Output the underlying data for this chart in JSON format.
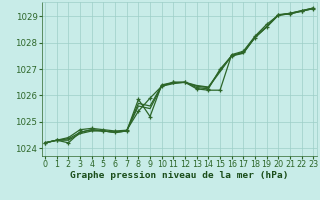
{
  "title": "Graphe pression niveau de la mer (hPa)",
  "x_values": [
    0,
    1,
    2,
    3,
    4,
    5,
    6,
    7,
    8,
    9,
    10,
    11,
    12,
    13,
    14,
    15,
    16,
    17,
    18,
    19,
    20,
    21,
    22,
    23
  ],
  "line_main": [
    1024.2,
    1024.3,
    1024.2,
    1024.6,
    1024.7,
    1024.65,
    1024.6,
    1024.65,
    1025.85,
    1025.2,
    1026.4,
    1026.5,
    1026.5,
    1026.3,
    1026.25,
    1027.0,
    1027.5,
    1027.65,
    1028.2,
    1028.6,
    1029.05,
    1029.1,
    1029.2,
    1029.3
  ],
  "line_smooth1": [
    1024.2,
    1024.3,
    1024.3,
    1024.55,
    1024.65,
    1024.65,
    1024.6,
    1024.65,
    1025.6,
    1025.5,
    1026.35,
    1026.45,
    1026.5,
    1026.35,
    1026.3,
    1026.9,
    1027.5,
    1027.6,
    1028.2,
    1028.6,
    1029.05,
    1029.1,
    1029.2,
    1029.3
  ],
  "line_smooth2": [
    1024.2,
    1024.3,
    1024.35,
    1024.6,
    1024.7,
    1024.65,
    1024.6,
    1024.65,
    1025.7,
    1025.6,
    1026.38,
    1026.48,
    1026.5,
    1026.38,
    1026.32,
    1026.95,
    1027.52,
    1027.62,
    1028.22,
    1028.62,
    1029.07,
    1029.12,
    1029.22,
    1029.32
  ],
  "line_dip": [
    1024.2,
    1024.3,
    1024.4,
    1024.7,
    1024.75,
    1024.7,
    1024.65,
    1024.68,
    1025.4,
    1025.9,
    1026.35,
    1026.5,
    1026.5,
    1026.25,
    1026.2,
    1026.2,
    1027.55,
    1027.68,
    1028.25,
    1028.7,
    1029.05,
    1029.12,
    1029.22,
    1029.32
  ],
  "ylim": [
    1023.7,
    1029.55
  ],
  "yticks": [
    1024,
    1025,
    1026,
    1027,
    1028,
    1029
  ],
  "xlim": [
    -0.3,
    23.3
  ],
  "bg_color": "#c8ece8",
  "line_color": "#2d6629",
  "grid_color": "#9dcfc8",
  "title_color": "#1a4d1a",
  "title_fontsize": 6.8,
  "tick_fontsize": 5.8,
  "ytick_fontsize": 6.2
}
